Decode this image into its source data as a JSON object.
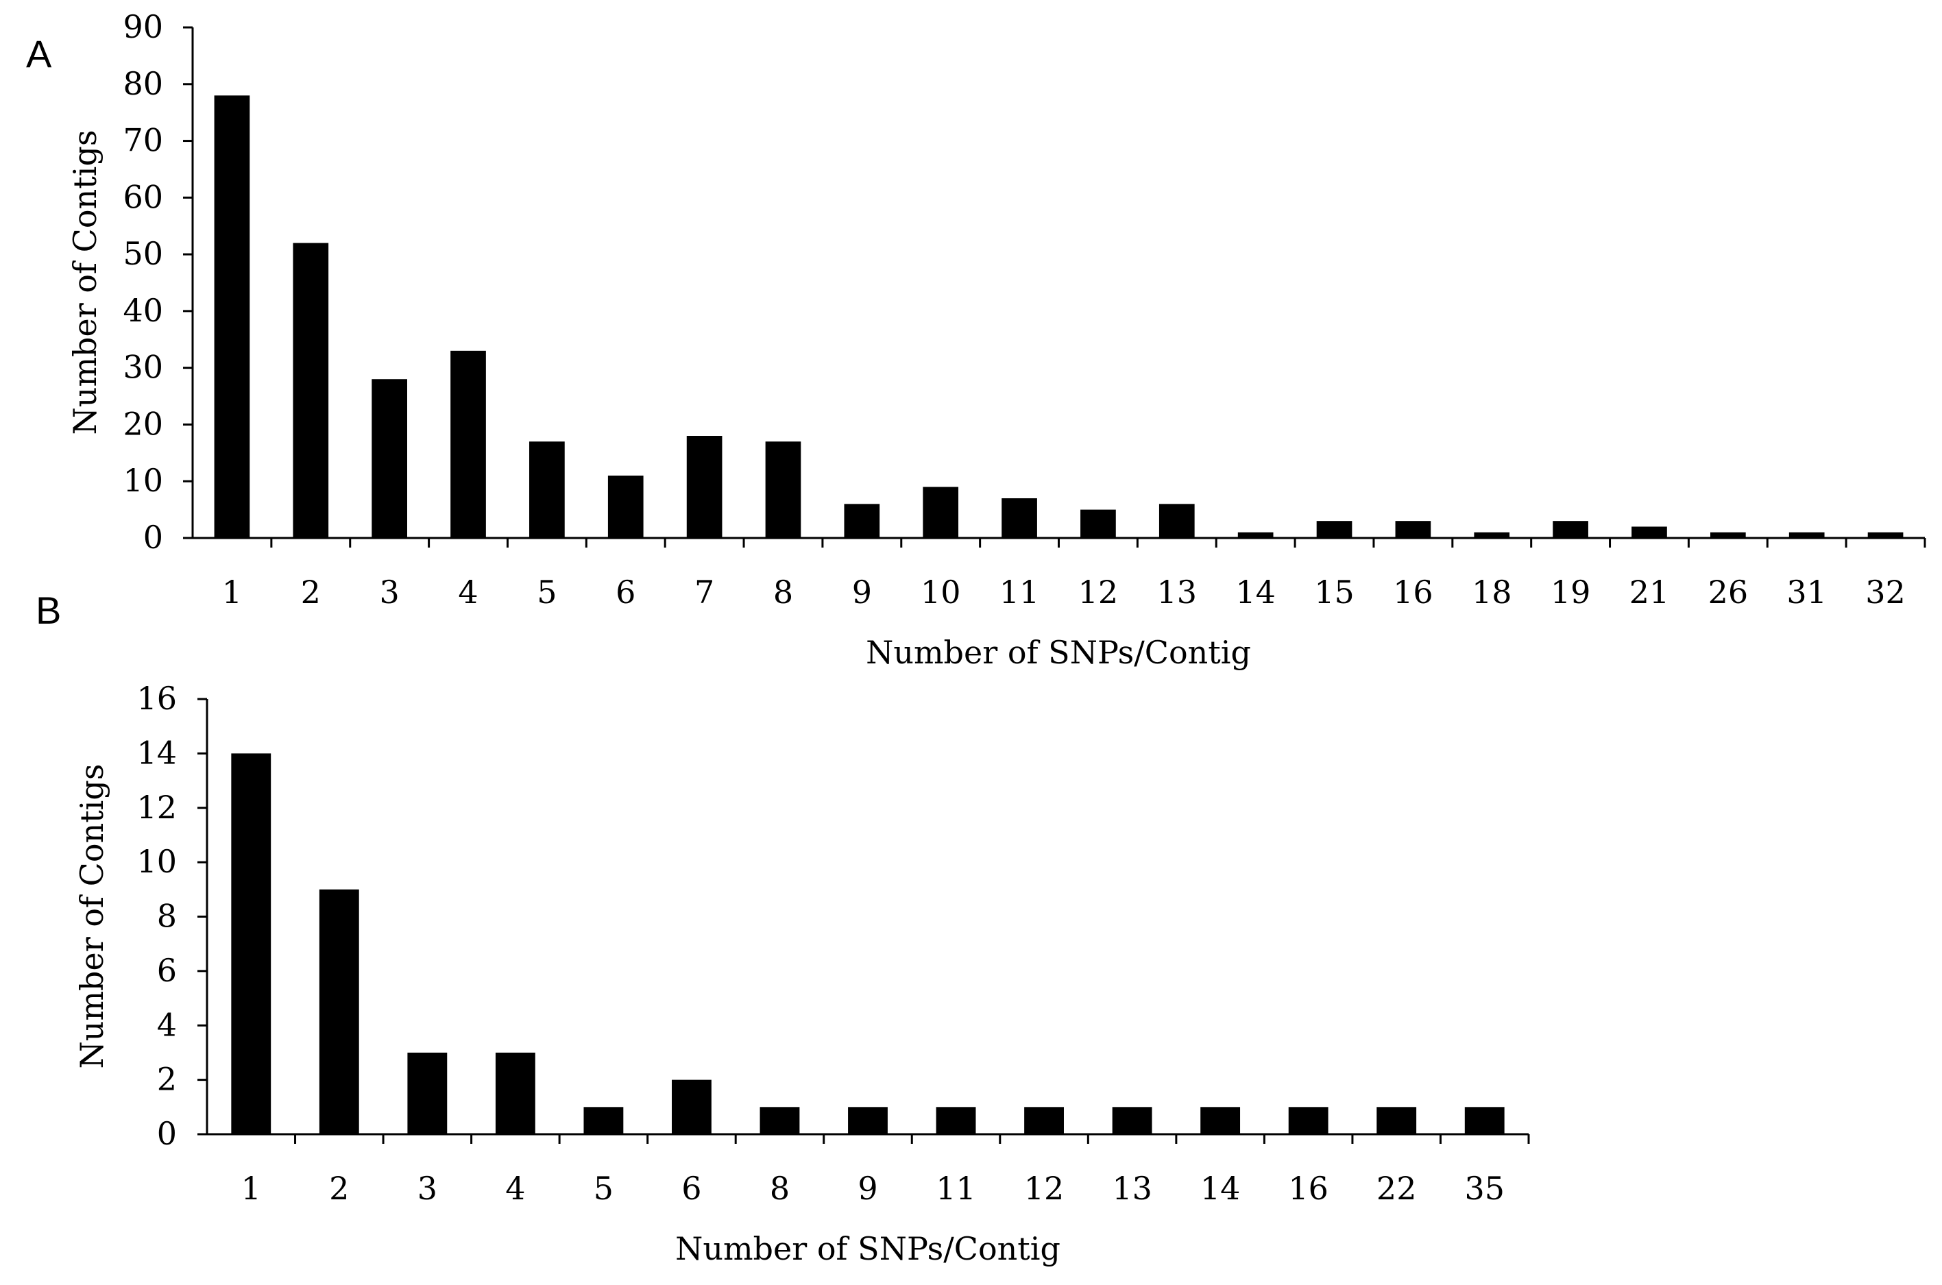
{
  "figure": {
    "panels": [
      "A",
      "B"
    ]
  },
  "chart_data": [
    {
      "type": "bar",
      "panel": "A",
      "categories": [
        "1",
        "2",
        "3",
        "4",
        "5",
        "6",
        "7",
        "8",
        "9",
        "10",
        "11",
        "12",
        "13",
        "14",
        "15",
        "16",
        "18",
        "19",
        "21",
        "26",
        "31",
        "32"
      ],
      "values": [
        78,
        52,
        28,
        33,
        17,
        11,
        18,
        17,
        6,
        9,
        7,
        5,
        6,
        1,
        3,
        3,
        1,
        3,
        2,
        1,
        1,
        1
      ],
      "title": "",
      "xlabel": "Number of SNPs/Contig",
      "ylabel": "Number of Contigs",
      "ylim": [
        0,
        90
      ],
      "yticks": [
        "0",
        "10",
        "20",
        "30",
        "40",
        "50",
        "60",
        "70",
        "80",
        "90"
      ],
      "grid": false,
      "bar_color": "#000000"
    },
    {
      "type": "bar",
      "panel": "B",
      "categories": [
        "1",
        "2",
        "3",
        "4",
        "5",
        "6",
        "8",
        "9",
        "11",
        "12",
        "13",
        "14",
        "16",
        "22",
        "35"
      ],
      "values": [
        14,
        9,
        3,
        3,
        1,
        2,
        1,
        1,
        1,
        1,
        1,
        1,
        1,
        1,
        1
      ],
      "title": "",
      "xlabel": "Number of SNPs/Contig",
      "ylabel": "Number of Contigs",
      "ylim": [
        0,
        16
      ],
      "yticks": [
        "0",
        "2",
        "4",
        "6",
        "8",
        "10",
        "12",
        "14",
        "16"
      ],
      "grid": false,
      "bar_color": "#000000"
    }
  ]
}
